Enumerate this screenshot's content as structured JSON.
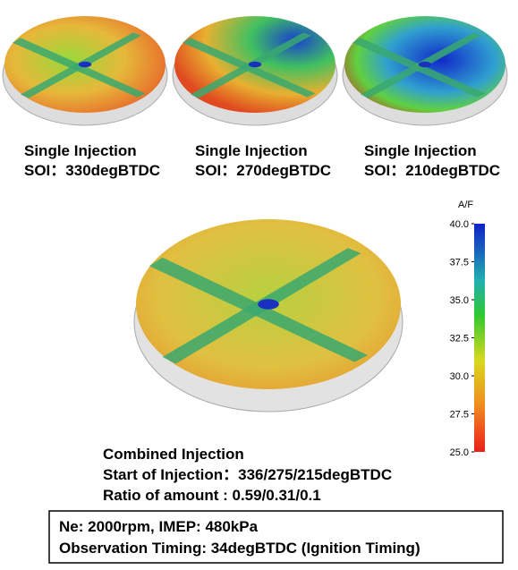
{
  "panels": [
    {
      "title": "Single Injection",
      "soi": "SOI：330degBTDC"
    },
    {
      "title": "Single Injection",
      "soi": "SOI：270degBTDC"
    },
    {
      "title": "Single Injection",
      "soi": "SOI：210degBTDC"
    }
  ],
  "colorbar": {
    "label": "A/F",
    "lim": [
      25,
      40
    ],
    "ticks": [
      {
        "value": 40,
        "label": "40.0"
      },
      {
        "value": 37.5,
        "label": "37.5"
      },
      {
        "value": 35,
        "label": "35.0"
      },
      {
        "value": 32.5,
        "label": "32.5"
      },
      {
        "value": 30,
        "label": "30.0"
      },
      {
        "value": 27.5,
        "label": "27.5"
      },
      {
        "value": 25,
        "label": "25.0"
      }
    ]
  },
  "combined": {
    "title": "Combined Injection",
    "soi": "Start of Injection：336/275/215degBTDC",
    "ratio": "Ratio of amount : 0.59/0.31/0.1"
  },
  "conditions": [
    "Ne: 2000rpm, IMEP: 480kPa",
    "Observation Timing: 34degBTDC (Ignition Timing)"
  ]
}
